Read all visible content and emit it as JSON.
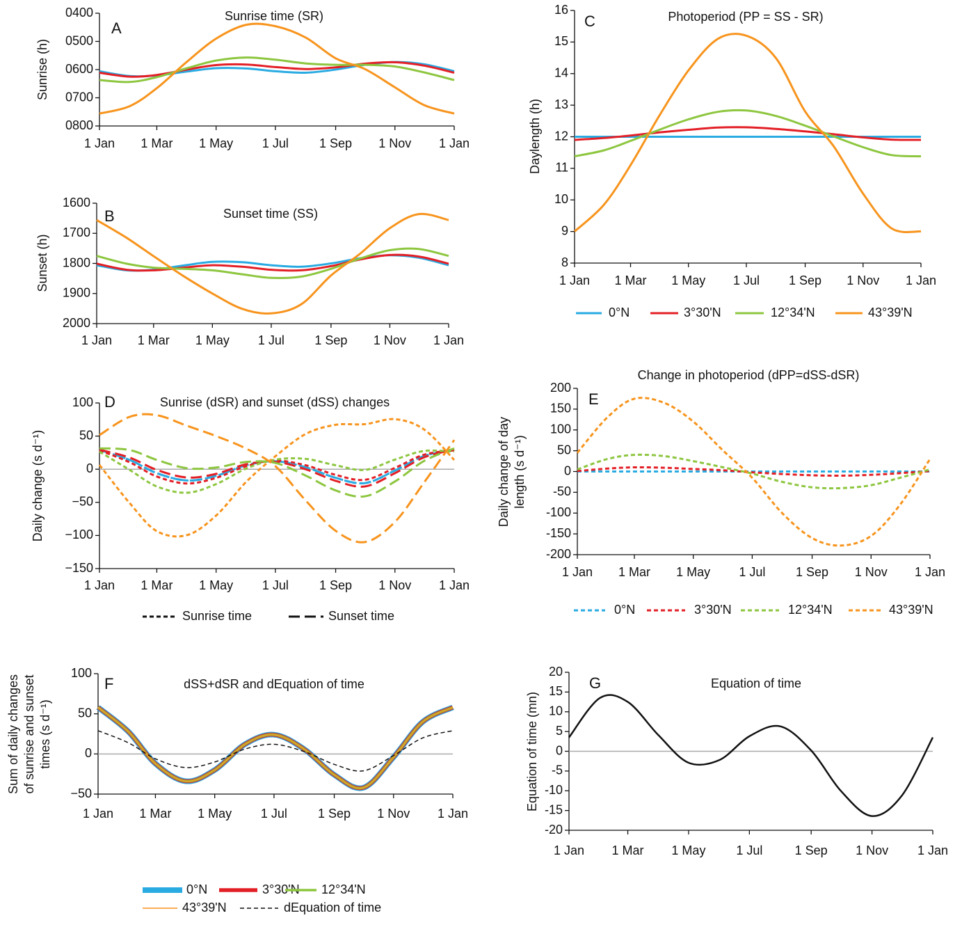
{
  "chart_data": [
    {
      "type": "line",
      "panel": "A",
      "title": "Sunrise time (SR)",
      "ylabel": "Sunrise (h)",
      "x": [
        0,
        31,
        59,
        90,
        120,
        151,
        181,
        212,
        243,
        273,
        304,
        334,
        365
      ],
      "xlim": [
        0,
        365
      ],
      "xticks": [
        {
          "value": 0,
          "label": "1 Jan"
        },
        {
          "value": 59,
          "label": "1 Mar"
        },
        {
          "value": 120,
          "label": "1 May"
        },
        {
          "value": 181,
          "label": "1 Jul"
        },
        {
          "value": 243,
          "label": "1 Sep"
        },
        {
          "value": 304,
          "label": "1 Nov"
        },
        {
          "value": 365,
          "label": "1 Jan"
        }
      ],
      "ylim": [
        8,
        4
      ],
      "yticks": [
        {
          "value": 4,
          "label": "0400"
        },
        {
          "value": 5,
          "label": "0500"
        },
        {
          "value": 6,
          "label": "0600"
        },
        {
          "value": 7,
          "label": "0700"
        },
        {
          "value": 8,
          "label": "0800"
        }
      ],
      "series": [
        {
          "color": "#29abe2",
          "values": [
            6.06,
            6.23,
            6.21,
            6.07,
            5.95,
            5.96,
            6.06,
            6.11,
            6.0,
            5.83,
            5.73,
            5.81,
            6.06
          ]
        },
        {
          "color": "#e31f26",
          "values": [
            6.11,
            6.25,
            6.19,
            6.0,
            5.84,
            5.82,
            5.91,
            5.98,
            5.92,
            5.79,
            5.74,
            5.86,
            6.11
          ]
        },
        {
          "color": "#8dc63f",
          "values": [
            6.37,
            6.44,
            6.27,
            5.95,
            5.68,
            5.57,
            5.65,
            5.78,
            5.83,
            5.83,
            5.89,
            6.1,
            6.37
          ]
        },
        {
          "color": "#f7941d",
          "values": [
            7.56,
            7.3,
            6.66,
            5.72,
            4.9,
            4.41,
            4.46,
            4.86,
            5.6,
            5.98,
            6.63,
            7.26,
            7.56
          ]
        }
      ]
    },
    {
      "type": "line",
      "panel": "B",
      "title": "Sunset time (SS)",
      "ylabel": "Sunset (h)",
      "x": [
        0,
        31,
        59,
        90,
        120,
        151,
        181,
        212,
        243,
        273,
        304,
        334,
        365
      ],
      "xlim": [
        0,
        365
      ],
      "xticks": [
        {
          "value": 0,
          "label": "1 Jan"
        },
        {
          "value": 59,
          "label": "1 Mar"
        },
        {
          "value": 120,
          "label": "1 May"
        },
        {
          "value": 181,
          "label": "1 Jul"
        },
        {
          "value": 243,
          "label": "1 Sep"
        },
        {
          "value": 304,
          "label": "1 Nov"
        },
        {
          "value": 365,
          "label": "1 Jan"
        }
      ],
      "ylim": [
        20,
        16
      ],
      "yticks": [
        {
          "value": 16,
          "label": "1600"
        },
        {
          "value": 17,
          "label": "1700"
        },
        {
          "value": 18,
          "label": "1800"
        },
        {
          "value": 19,
          "label": "1900"
        },
        {
          "value": 20,
          "label": "2000"
        }
      ],
      "series": [
        {
          "color": "#29abe2",
          "values": [
            18.06,
            18.23,
            18.21,
            18.07,
            17.95,
            17.96,
            18.06,
            18.11,
            18.0,
            17.83,
            17.73,
            17.81,
            18.06
          ]
        },
        {
          "color": "#e31f26",
          "values": [
            18.01,
            18.21,
            18.23,
            18.14,
            18.06,
            18.11,
            18.21,
            18.23,
            18.09,
            17.87,
            17.72,
            17.77,
            18.01
          ]
        },
        {
          "color": "#8dc63f",
          "values": [
            17.75,
            18.01,
            18.14,
            18.18,
            18.23,
            18.36,
            18.48,
            18.44,
            18.18,
            17.84,
            17.56,
            17.52,
            17.75
          ]
        },
        {
          "color": "#f7941d",
          "values": [
            16.56,
            17.15,
            17.76,
            18.42,
            19.0,
            19.51,
            19.66,
            19.36,
            18.4,
            17.68,
            16.83,
            16.36,
            16.56
          ]
        }
      ]
    },
    {
      "type": "line",
      "panel": "C",
      "title": "Photoperiod (PP = SS - SR)",
      "ylabel": "Daylength (h)",
      "x": [
        0,
        31,
        59,
        90,
        120,
        151,
        181,
        212,
        243,
        273,
        304,
        334,
        365
      ],
      "xlim": [
        0,
        365
      ],
      "xticks": [
        {
          "value": 0,
          "label": "1 Jan"
        },
        {
          "value": 59,
          "label": "1 Mar"
        },
        {
          "value": 120,
          "label": "1 May"
        },
        {
          "value": 181,
          "label": "1 Jul"
        },
        {
          "value": 243,
          "label": "1 Sep"
        },
        {
          "value": 304,
          "label": "1 Nov"
        },
        {
          "value": 365,
          "label": "1 Jan"
        }
      ],
      "ylim": [
        8,
        16
      ],
      "yticks": [
        8,
        9,
        10,
        11,
        12,
        13,
        14,
        15,
        16
      ],
      "series": [
        {
          "name": "0°N",
          "color": "#29abe2",
          "values": [
            12,
            12,
            12,
            12,
            12,
            12,
            12,
            12,
            12,
            12,
            12,
            12,
            12
          ]
        },
        {
          "name": "3°30'N",
          "color": "#e31f26",
          "values": [
            11.9,
            11.96,
            12.04,
            12.14,
            12.22,
            12.29,
            12.3,
            12.25,
            12.17,
            12.08,
            11.98,
            11.91,
            11.9
          ]
        },
        {
          "name": "12°34'N",
          "color": "#8dc63f",
          "values": [
            11.38,
            11.57,
            11.87,
            12.23,
            12.55,
            12.79,
            12.83,
            12.66,
            12.35,
            12.01,
            11.67,
            11.42,
            11.38
          ]
        },
        {
          "name": "43°39'N",
          "color": "#f7941d",
          "values": [
            9.0,
            9.85,
            11.1,
            12.7,
            14.1,
            15.1,
            15.2,
            14.5,
            12.8,
            11.7,
            10.2,
            9.1,
            9.0
          ]
        }
      ]
    },
    {
      "type": "line",
      "panel": "D",
      "title": "Sunrise (dSR) and sunset (dSS) changes",
      "ylabel": "Daily change (s d⁻¹)",
      "x": [
        0,
        31,
        59,
        90,
        120,
        151,
        181,
        212,
        243,
        273,
        304,
        334,
        365
      ],
      "xlim": [
        0,
        365
      ],
      "xticks": [
        {
          "value": 0,
          "label": "1 Jan"
        },
        {
          "value": 59,
          "label": "1 Mar"
        },
        {
          "value": 120,
          "label": "1 May"
        },
        {
          "value": 181,
          "label": "1 Jul"
        },
        {
          "value": 243,
          "label": "1 Sep"
        },
        {
          "value": 304,
          "label": "1 Nov"
        },
        {
          "value": 365,
          "label": "1 Jan"
        }
      ],
      "ylim": [
        -150,
        100
      ],
      "yticks": [
        100,
        50,
        0,
        {
          "value": -50,
          "label": "−50"
        },
        {
          "value": -100,
          "label": "−100"
        },
        {
          "value": -150,
          "label": "−150"
        }
      ],
      "hline": 0,
      "legend": [
        {
          "name": "Sunrise time",
          "color": "#111111",
          "dash": "short"
        },
        {
          "name": "Sunset time",
          "color": "#111111",
          "dash": "long"
        }
      ],
      "series": [
        {
          "color": "#29abe2",
          "dash": "short",
          "values": [
            29,
            14,
            -6,
            -17,
            -10,
            6,
            12,
            3,
            -13,
            -21,
            -2,
            20,
            29
          ]
        },
        {
          "color": "#29abe2",
          "dash": "long",
          "values": [
            29,
            14,
            -6,
            -17,
            -10,
            6,
            12,
            3,
            -13,
            -21,
            -2,
            20,
            29
          ]
        },
        {
          "color": "#e31f26",
          "dash": "short",
          "values": [
            28.5,
            10.5,
            -11,
            -21.5,
            -13,
            4.5,
            13,
            6,
            -8.5,
            -16,
            2,
            22,
            28.5
          ]
        },
        {
          "color": "#e31f26",
          "dash": "long",
          "values": [
            29.5,
            17.5,
            -1,
            -12.5,
            -7,
            7.5,
            11,
            0,
            -17.5,
            -26,
            -6,
            18,
            29.5
          ]
        },
        {
          "color": "#8dc63f",
          "dash": "short",
          "values": [
            26.5,
            -1,
            -26,
            -35.5,
            -22.5,
            1,
            14.5,
            15.5,
            6,
            -1,
            14.5,
            27.5,
            26.5
          ]
        },
        {
          "color": "#8dc63f",
          "dash": "long",
          "values": [
            31.5,
            29,
            14,
            1.5,
            2.5,
            11,
            9.5,
            -9.5,
            -32,
            -41,
            -18.5,
            12.5,
            31.5
          ]
        },
        {
          "color": "#f7941d",
          "dash": "short",
          "values": [
            6.5,
            -51,
            -93.5,
            -99.5,
            -70,
            -19,
            19.5,
            53,
            67,
            68,
            75.5,
            60,
            14
          ]
        },
        {
          "color": "#f7941d",
          "dash": "long",
          "values": [
            51.5,
            79,
            81.5,
            65.5,
            50,
            31,
            4.5,
            -47,
            -93,
            -110,
            -79.5,
            -20,
            44
          ]
        }
      ]
    },
    {
      "type": "line",
      "panel": "E",
      "title": "Change in photoperiod (dPP=dSS-dSR)",
      "ylabel": [
        "Daily change of day",
        "length (s d⁻¹)"
      ],
      "x": [
        0,
        31,
        59,
        90,
        120,
        151,
        181,
        212,
        243,
        273,
        304,
        334,
        365
      ],
      "xlim": [
        0,
        365
      ],
      "xticks": [
        {
          "value": 0,
          "label": "1 Jan"
        },
        {
          "value": 59,
          "label": "1 Mar"
        },
        {
          "value": 120,
          "label": "1 May"
        },
        {
          "value": 181,
          "label": "1 Jul"
        },
        {
          "value": 243,
          "label": "1 Sep"
        },
        {
          "value": 304,
          "label": "1 Nov"
        },
        {
          "value": 365,
          "label": "1 Jan"
        }
      ],
      "ylim": [
        -200,
        200
      ],
      "yticks": [
        200,
        150,
        100,
        50,
        0,
        -50,
        -100,
        -150,
        -200
      ],
      "series": [
        {
          "name": "0°N",
          "color": "#29abe2",
          "dash": "short",
          "values": [
            0,
            0,
            0,
            0,
            0,
            0,
            0,
            0,
            0,
            0,
            0,
            0,
            0
          ]
        },
        {
          "name": "3°30'N",
          "color": "#e31f26",
          "dash": "short",
          "values": [
            1,
            7,
            10,
            9,
            6,
            3,
            -2,
            -6,
            -9,
            -10,
            -8,
            -4,
            1
          ]
        },
        {
          "name": "12°34'N",
          "color": "#8dc63f",
          "dash": "short",
          "values": [
            5,
            30,
            40,
            37,
            25,
            10,
            -5,
            -25,
            -38,
            -40,
            -33,
            -15,
            5
          ]
        },
        {
          "name": "43°39'N",
          "color": "#f7941d",
          "dash": "short",
          "values": [
            45,
            130,
            175,
            165,
            120,
            50,
            -15,
            -100,
            -160,
            -178,
            -155,
            -80,
            30
          ]
        }
      ]
    },
    {
      "type": "line",
      "panel": "F",
      "title": "dSS+dSR and dEquation of time",
      "ylabel": [
        "Sum of daily changes",
        "of sunrise and sunset",
        "times (s d⁻¹)"
      ],
      "x": [
        0,
        31,
        59,
        90,
        120,
        151,
        181,
        212,
        243,
        273,
        304,
        334,
        365
      ],
      "xlim": [
        0,
        365
      ],
      "xticks": [
        {
          "value": 0,
          "label": "1 Jan"
        },
        {
          "value": 59,
          "label": "1 Mar"
        },
        {
          "value": 120,
          "label": "1 May"
        },
        {
          "value": 181,
          "label": "1 Jul"
        },
        {
          "value": 243,
          "label": "1 Sep"
        },
        {
          "value": 304,
          "label": "1 Nov"
        },
        {
          "value": 365,
          "label": "1 Jan"
        }
      ],
      "ylim": [
        -50,
        100
      ],
      "yticks": [
        {
          "value": -50,
          "label": "−50"
        },
        0,
        50,
        100
      ],
      "hline": 0,
      "series": [
        {
          "name": "0°N",
          "color": "#29abe2",
          "width": 8,
          "values": [
            58,
            28,
            -12,
            -34,
            -20,
            12,
            24,
            6,
            -26,
            -42,
            -4,
            40,
            58
          ]
        },
        {
          "name": "3°30'N",
          "color": "#e31f26",
          "width": 5.5,
          "values": [
            58,
            28,
            -12,
            -34,
            -20,
            12,
            24,
            6,
            -26,
            -42,
            -4,
            40,
            58
          ]
        },
        {
          "name": "12°34'N",
          "color": "#8dc63f",
          "width": 3.5,
          "values": [
            58,
            28,
            -12,
            -34,
            -20,
            12,
            24,
            6,
            -26,
            -42,
            -4,
            40,
            58
          ]
        },
        {
          "name": "43°39'N",
          "color": "#f7941d",
          "width": 1.5,
          "values": [
            58,
            28,
            -12,
            -34,
            -20,
            12,
            24,
            6,
            -26,
            -42,
            -4,
            40,
            58
          ]
        },
        {
          "name": "dEquation of time",
          "color": "#111111",
          "width": 1.5,
          "dash": "short",
          "values": [
            29,
            14,
            -6,
            -17,
            -10,
            6,
            12,
            3,
            -13,
            -21,
            -2,
            20,
            29
          ]
        }
      ]
    },
    {
      "type": "line",
      "panel": "G",
      "title": "Equation of time",
      "ylabel": "Equation of time (mn)",
      "x": [
        0,
        31,
        59,
        90,
        120,
        151,
        181,
        212,
        243,
        273,
        304,
        334,
        365
      ],
      "xlim": [
        0,
        365
      ],
      "xticks": [
        {
          "value": 0,
          "label": "1 Jan"
        },
        {
          "value": 59,
          "label": "1 Mar"
        },
        {
          "value": 120,
          "label": "1 May"
        },
        {
          "value": 181,
          "label": "1 Jul"
        },
        {
          "value": 243,
          "label": "1 Sep"
        },
        {
          "value": 304,
          "label": "1 Nov"
        },
        {
          "value": 365,
          "label": "1 Jan"
        }
      ],
      "ylim": [
        -20,
        20
      ],
      "yticks": [
        20,
        15,
        10,
        5,
        0,
        -5,
        -10,
        -15,
        -20
      ],
      "hline": 0,
      "series": [
        {
          "color": "#111111",
          "width": 2.5,
          "values": [
            3.5,
            13.5,
            12.5,
            4,
            -2.9,
            -2.2,
            3.8,
            6.3,
            0.2,
            -10.1,
            -16.4,
            -11.2,
            3.5
          ]
        }
      ]
    }
  ]
}
